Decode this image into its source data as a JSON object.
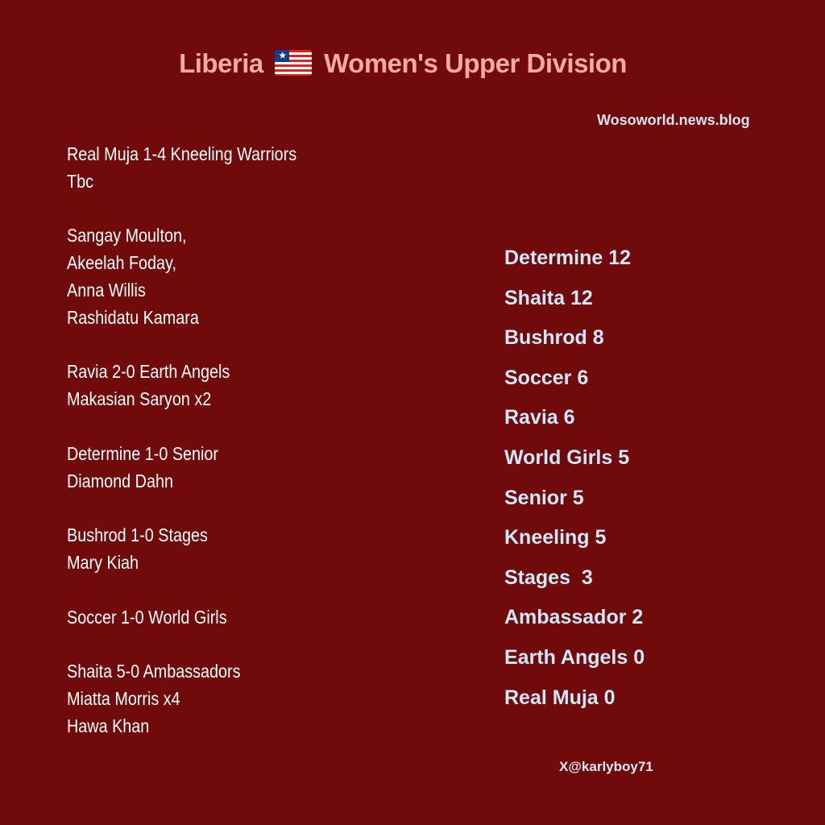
{
  "title": {
    "before": "Liberia",
    "after": "Women's Upper Division",
    "flag_icon": "liberia-flag-icon"
  },
  "site": "Wosoworld.news.blog",
  "results": [
    "Real Muja 1-4 Kneeling Warriors",
    "Tbc",
    "",
    "Sangay Moulton,",
    "Akeelah Foday,",
    "Anna Willis",
    "Rashidatu Kamara",
    "",
    "Ravia 2-0 Earth Angels",
    "Makasian Saryon x2",
    "",
    "Determine 1-0 Senior",
    "Diamond Dahn",
    "",
    "Bushrod 1-0 Stages",
    "Mary Kiah",
    "",
    "Soccer 1-0 World Girls",
    "",
    "Shaita 5-0 Ambassadors",
    "Miatta Morris x4",
    "Hawa Khan"
  ],
  "standings": [
    "Determine 12",
    "Shaita 12",
    "Bushrod 8",
    "Soccer 6",
    "Ravia 6",
    "World Girls 5",
    "Senior 5",
    "Kneeling 5",
    "Stages  3",
    "Ambassador 2",
    "Earth Angels 0",
    "Real Muja 0"
  ],
  "handle": "X@karlyboy71",
  "colors": {
    "background": "#710b0b",
    "title": "#f5a9a6",
    "standings": "#cde8f8",
    "results": "#ffffff"
  }
}
